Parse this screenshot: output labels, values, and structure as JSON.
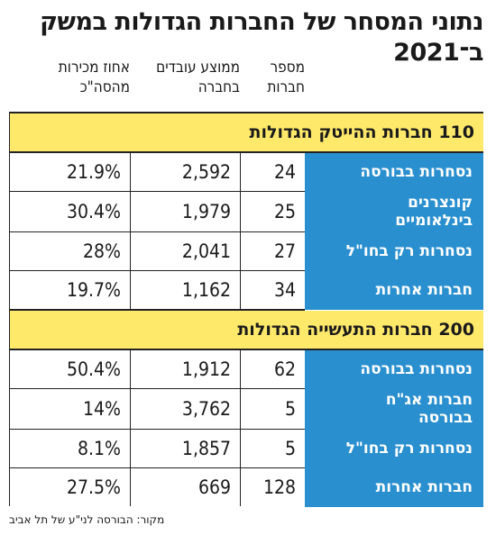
{
  "title": "נתוני המסחר של החברות הגדולות במשק ב־2021",
  "columns": {
    "companies": "מספר\nחברות",
    "employees": "ממוצע עובדים\nבחברה",
    "percent": "אחוז מכירות\nמהסה\"כ"
  },
  "sections": [
    {
      "title": "110 חברות ההייטק הגדולות",
      "rows": [
        {
          "label": "נסחרות בבורסה",
          "companies": "24",
          "employees": "2,592",
          "percent": "21.9%"
        },
        {
          "label": "קונצרנים\nבינלאומיים",
          "companies": "25",
          "employees": "1,979",
          "percent": "30.4%"
        },
        {
          "label": "נסחרות רק בחו\"ל",
          "companies": "27",
          "employees": "2,041",
          "percent": "28%"
        },
        {
          "label": "חברות אחרות",
          "companies": "34",
          "employees": "1,162",
          "percent": "19.7%"
        }
      ]
    },
    {
      "title": "200 חברות התעשייה הגדולות",
      "rows": [
        {
          "label": "נסחרות בבורסה",
          "companies": "62",
          "employees": "1,912",
          "percent": "50.4%"
        },
        {
          "label": "חברות אג\"ח\nבבורסה",
          "companies": "5",
          "employees": "3,762",
          "percent": "14%"
        },
        {
          "label": "נסחרות רק בחו\"ל",
          "companies": "5",
          "employees": "1,857",
          "percent": "8.1%"
        },
        {
          "label": "חברות אחרות",
          "companies": "128",
          "employees": "669",
          "percent": "27.5%"
        }
      ]
    }
  ],
  "source": "מקור: הבורסה לני\"ע של תל אביב",
  "colors": {
    "label_bg": "#2a8fcf",
    "section_bg": "#ffe96b"
  }
}
